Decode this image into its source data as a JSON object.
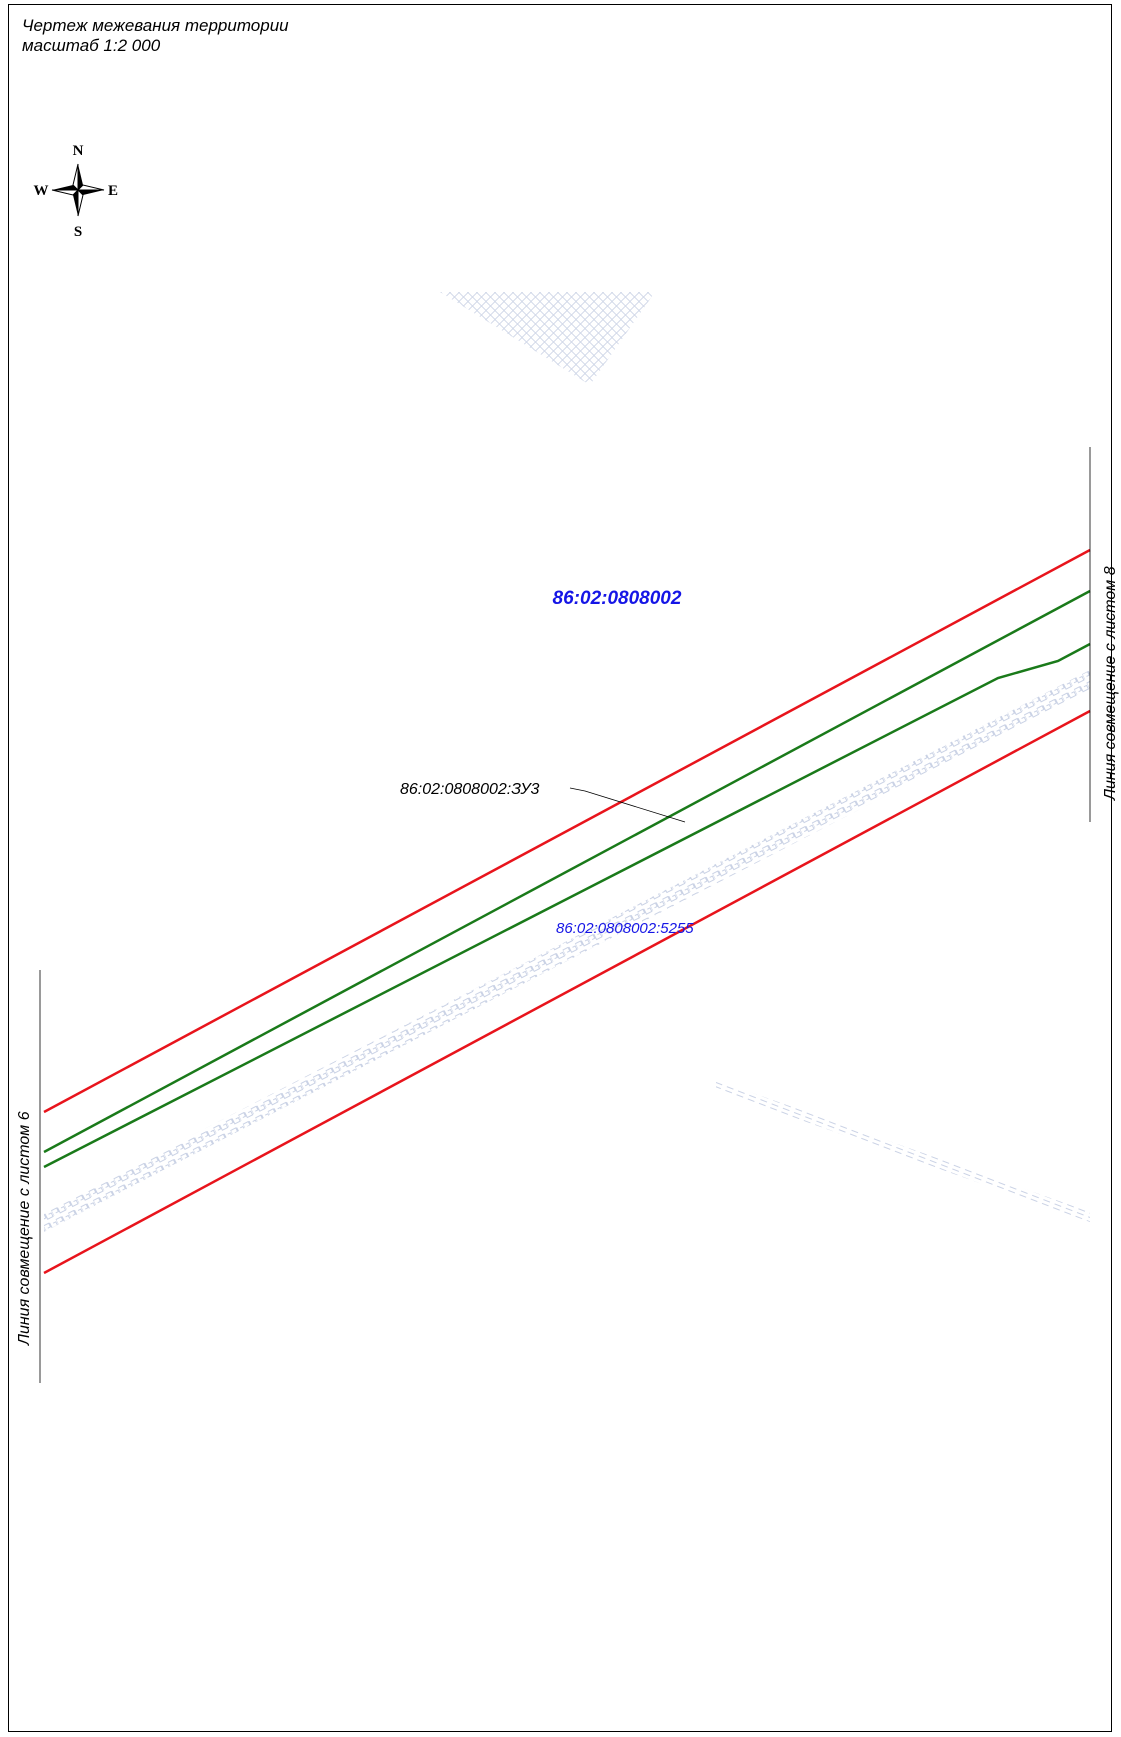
{
  "sheet": {
    "title": "Чертеж межевания территории",
    "scale": "масштаб 1:2 000"
  },
  "compass": {
    "icon": "compass-rose-icon",
    "north": "N",
    "south": "S",
    "east": "E",
    "west": "W"
  },
  "labels": {
    "quarter": "86:02:0808002",
    "new_parcel": "86:02:0808002:ЗУ3",
    "existing_parcel": "86:02:0808002:5255",
    "match_line_right": "Линия совмещение с листом 8",
    "match_line_left": "Линия совмещение с листом 6"
  },
  "colors": {
    "red_line": "#e8141c",
    "green_line": "#1a7a1a",
    "quarter_label": "#1515e6",
    "parcel_label": "#1515e6",
    "hatch": "#c4cde2",
    "frame": "#000000"
  }
}
